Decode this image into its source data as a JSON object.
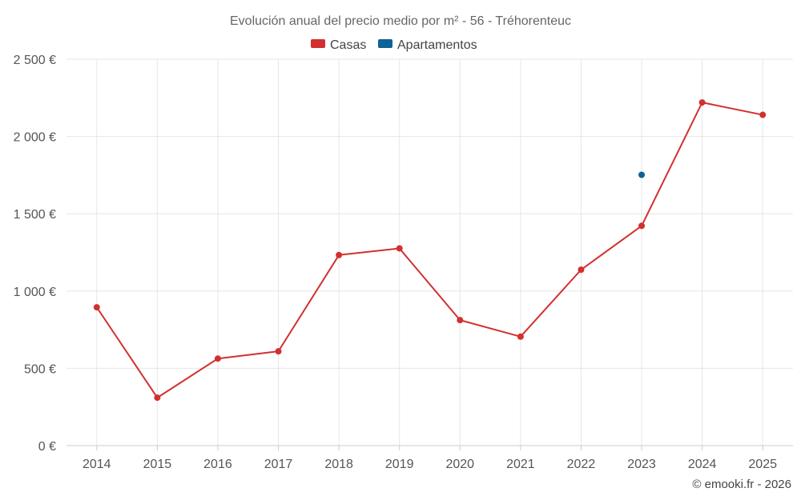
{
  "chart_data": {
    "type": "line",
    "title": "Evolución anual del precio medio por m² - 56 - Tréhorenteuc",
    "categories": [
      "2014",
      "2015",
      "2016",
      "2017",
      "2018",
      "2019",
      "2020",
      "2021",
      "2022",
      "2023",
      "2024",
      "2025"
    ],
    "series": [
      {
        "name": "Casas",
        "color": "#d32f2f",
        "values": [
          895,
          310,
          563,
          610,
          1233,
          1276,
          812,
          705,
          1138,
          1422,
          2220,
          2140
        ]
      },
      {
        "name": "Apartamentos",
        "color": "#0d6396",
        "values": [
          null,
          null,
          null,
          null,
          null,
          null,
          null,
          null,
          null,
          1752,
          null,
          null
        ]
      }
    ],
    "y_ticks": [
      0,
      500,
      1000,
      1500,
      2000,
      2500
    ],
    "y_tick_labels": [
      "0 €",
      "500 €",
      "1 000 €",
      "1 500 €",
      "2 000 €",
      "2 500 €"
    ],
    "ylim": [
      0,
      2500
    ],
    "grid": true,
    "legend_position": "top-center"
  },
  "credit": "© emooki.fr - 2026"
}
